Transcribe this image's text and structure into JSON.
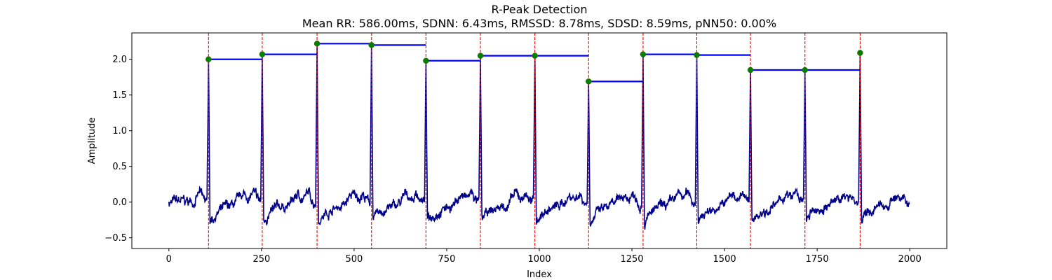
{
  "chart_data": {
    "type": "line",
    "title": "R-Peak Detection",
    "subtitle": "Mean RR: 586.00ms, SDNN: 6.43ms, RMSSD: 8.78ms, SDSD: 8.59ms, pNN50: 0.00%",
    "xlabel": "Index",
    "ylabel": "Amplitude",
    "xlim": [
      -100,
      2100
    ],
    "ylim": [
      -0.65,
      2.37
    ],
    "xticks": [
      0,
      250,
      500,
      750,
      1000,
      1250,
      1500,
      1750,
      2000
    ],
    "xtick_labels": [
      "0",
      "250",
      "500",
      "750",
      "1000",
      "1250",
      "1500",
      "1750",
      "2000"
    ],
    "yticks": [
      -0.5,
      0.0,
      0.5,
      1.0,
      1.5,
      2.0
    ],
    "ytick_labels": [
      "−0.5",
      "0.0",
      "0.5",
      "1.0",
      "1.5",
      "2.0"
    ],
    "grid": false,
    "colors": {
      "signal": "#00008b",
      "peak_line": "#ff0000",
      "peak_marker": "#008000",
      "rr_segment": "#0000ff"
    },
    "signal_length": 2000,
    "r_peaks": [
      {
        "x": 107,
        "y": 2.0
      },
      {
        "x": 252,
        "y": 2.07
      },
      {
        "x": 400,
        "y": 2.22
      },
      {
        "x": 547,
        "y": 2.2
      },
      {
        "x": 694,
        "y": 1.98
      },
      {
        "x": 841,
        "y": 2.05
      },
      {
        "x": 988,
        "y": 2.05
      },
      {
        "x": 1133,
        "y": 1.69
      },
      {
        "x": 1280,
        "y": 2.07
      },
      {
        "x": 1425,
        "y": 2.06
      },
      {
        "x": 1570,
        "y": 1.85
      },
      {
        "x": 1717,
        "y": 1.85
      },
      {
        "x": 1866,
        "y": 2.09
      }
    ],
    "rr_segments": [
      {
        "x0": 107,
        "x1": 252,
        "y": 2.0
      },
      {
        "x0": 252,
        "x1": 400,
        "y": 2.07
      },
      {
        "x0": 400,
        "x1": 547,
        "y": 2.22
      },
      {
        "x0": 547,
        "x1": 694,
        "y": 2.2
      },
      {
        "x0": 694,
        "x1": 841,
        "y": 1.98
      },
      {
        "x0": 841,
        "x1": 988,
        "y": 2.05
      },
      {
        "x0": 988,
        "x1": 1133,
        "y": 2.05
      },
      {
        "x0": 1133,
        "x1": 1280,
        "y": 1.69
      },
      {
        "x0": 1280,
        "x1": 1425,
        "y": 2.07
      },
      {
        "x0": 1425,
        "x1": 1570,
        "y": 2.06
      },
      {
        "x0": 1570,
        "x1": 1717,
        "y": 1.85
      },
      {
        "x0": 1717,
        "x1": 1866,
        "y": 1.85
      }
    ],
    "signal_amplitude": 0.18
  }
}
